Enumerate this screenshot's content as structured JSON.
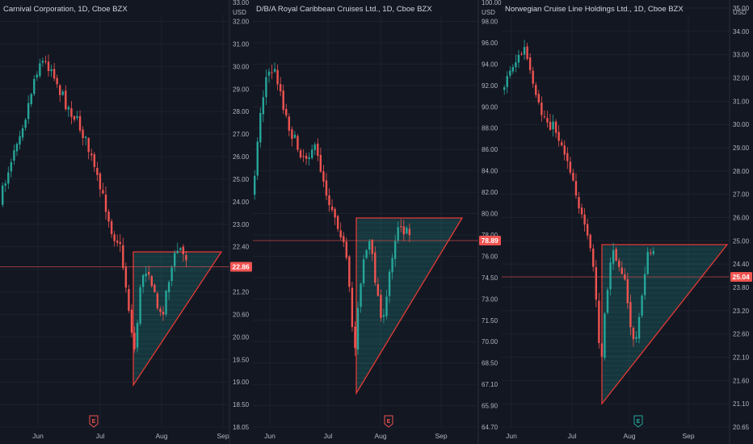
{
  "colors": {
    "background": "#131722",
    "grid": "#1e222d",
    "separator": "#2a2e39",
    "up": "#26a69a",
    "down": "#ef5350",
    "pattern_stroke": "#e53935",
    "pattern_fill": "#26a69a"
  },
  "chart_data": [
    {
      "type": "candlestick",
      "title": "Carnival Corporation, 1D, Cboe BZX",
      "currency": "USD",
      "last_price": "22.86",
      "x_ticks": [
        "Jun",
        "Jul",
        "Aug",
        "Sep"
      ],
      "y_ticks": [
        "32.00",
        "31.00",
        "30.00",
        "29.00",
        "28.00",
        "27.00",
        "26.00",
        "25.00",
        "24.00",
        "23.00",
        "22.40",
        "21.80",
        "21.20",
        "20.60",
        "20.00",
        "19.50",
        "19.00",
        "18.50",
        "18.05"
      ],
      "y_top_partial": "33.00",
      "earnings_marker": "E",
      "earnings_marker_color": "#ef5350",
      "pattern": "ascending-triangle"
    },
    {
      "type": "candlestick",
      "title": "D/B/A Royal Caribbean Cruises Ltd., 1D, Cboe BZX",
      "currency": "USD",
      "last_price": "78.89",
      "x_ticks": [
        "Jun",
        "Jul",
        "Aug",
        "Sep"
      ],
      "y_ticks": [
        "98.00",
        "96.00",
        "94.00",
        "92.00",
        "90.00",
        "88.00",
        "86.00",
        "84.00",
        "82.00",
        "80.00",
        "78.00",
        "76.00",
        "74.50",
        "73.00",
        "71.50",
        "70.00",
        "68.50",
        "67.10",
        "65.90",
        "64.70"
      ],
      "y_top_partial": "100.00",
      "earnings_marker": "E",
      "earnings_marker_color": "#ef5350",
      "pattern": "ascending-triangle"
    },
    {
      "type": "candlestick",
      "title": "Norwegian Cruise Line Holdings Ltd., 1D, Cboe BZX",
      "currency": "USD",
      "last_price": "25.04",
      "x_ticks": [
        "Jun",
        "Jul",
        "Aug",
        "Sep"
      ],
      "y_ticks": [
        "35.00",
        "34.00",
        "33.00",
        "32.00",
        "31.00",
        "30.00",
        "29.00",
        "28.00",
        "27.00",
        "26.00",
        "25.00",
        "24.40",
        "23.80",
        "23.20",
        "22.60",
        "22.10",
        "21.60",
        "21.10",
        "20.65"
      ],
      "earnings_marker": "E",
      "earnings_marker_color": "#26a69a",
      "pattern": "ascending-triangle"
    }
  ]
}
